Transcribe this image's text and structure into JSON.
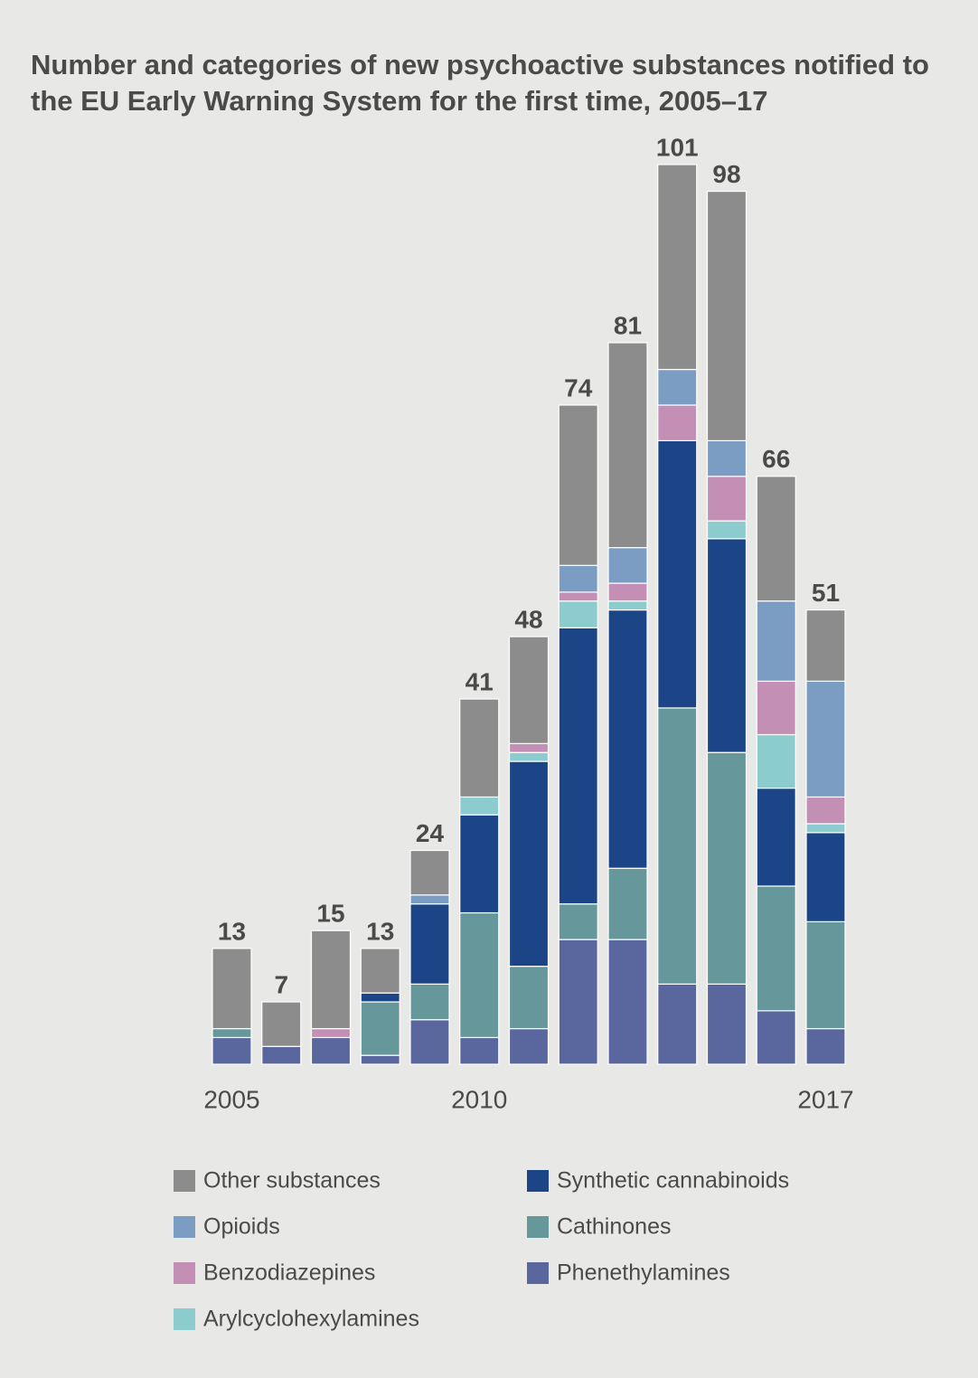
{
  "chart_data": {
    "type": "stacked_bar",
    "title": "Number and categories of new psychoactive substances notified to the EU Early Warning System for the first time, 2005–17",
    "categories": [
      "2005",
      null,
      null,
      null,
      null,
      "2010",
      null,
      null,
      null,
      null,
      null,
      null,
      "2017"
    ],
    "totals": [
      13,
      7,
      15,
      13,
      24,
      41,
      48,
      74,
      81,
      101,
      98,
      66,
      51
    ],
    "series": [
      {
        "name": "Phenethylamines",
        "color": "#5a679f",
        "values": [
          3,
          2,
          3,
          1,
          5,
          3,
          4,
          14,
          14,
          9,
          9,
          6,
          4
        ]
      },
      {
        "name": "Cathinones",
        "color": "#66979a",
        "values": [
          1,
          0,
          0,
          6,
          4,
          14,
          7,
          4,
          8,
          31,
          26,
          14,
          12
        ]
      },
      {
        "name": "Synthetic cannabinoids",
        "color": "#1c4587",
        "values": [
          0,
          0,
          0,
          1,
          9,
          11,
          23,
          31,
          29,
          30,
          24,
          11,
          10
        ]
      },
      {
        "name": "Arylcyclohexylamines",
        "color": "#8ccccf",
        "values": [
          0,
          0,
          0,
          0,
          0,
          2,
          1,
          3,
          1,
          0,
          2,
          6,
          1
        ]
      },
      {
        "name": "Benzodiazepines",
        "color": "#c48fb4",
        "values": [
          0,
          0,
          1,
          0,
          0,
          0,
          1,
          1,
          2,
          4,
          5,
          6,
          3
        ]
      },
      {
        "name": "Opioids",
        "color": "#7b9dc4",
        "values": [
          0,
          0,
          0,
          0,
          1,
          0,
          0,
          3,
          4,
          4,
          4,
          9,
          13
        ]
      },
      {
        "name": "Other substances",
        "color": "#8c8c8c",
        "values": [
          9,
          5,
          11,
          5,
          5,
          11,
          12,
          18,
          23,
          23,
          28,
          14,
          8
        ]
      }
    ]
  }
}
